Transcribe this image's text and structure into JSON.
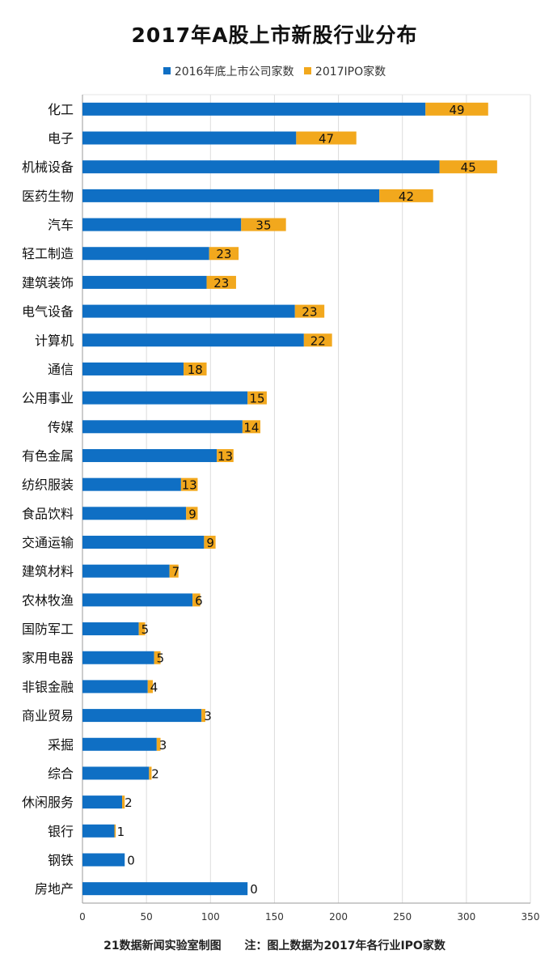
{
  "title": "2017年A股上市新股行业分布",
  "legend": [
    {
      "name": "2016年底上市公司家数",
      "color": "#0f6fc4"
    },
    {
      "name": "2017IPO家数",
      "color": "#f2a81d"
    }
  ],
  "footer": {
    "source": "21数据新闻实验室制图",
    "note": "注：图上数据为2017年各行业IPO家数"
  },
  "chart_data": {
    "type": "bar",
    "orientation": "horizontal",
    "stacked": true,
    "title": "2017年A股上市新股行业分布",
    "xlim": [
      0,
      350
    ],
    "xticks": [
      0,
      50,
      100,
      150,
      200,
      250,
      300,
      350
    ],
    "grid": "vertical",
    "legend_position": "top",
    "data_labels": "2017IPO家数",
    "categories": [
      "化工",
      "电子",
      "机械设备",
      "医药生物",
      "汽车",
      "轻工制造",
      "建筑装饰",
      "电气设备",
      "计算机",
      "通信",
      "公用事业",
      "传媒",
      "有色金属",
      "纺织服装",
      "食品饮料",
      "交通运输",
      "建筑材料",
      "农林牧渔",
      "国防军工",
      "家用电器",
      "非银金融",
      "商业贸易",
      "采掘",
      "综合",
      "休闲服务",
      "银行",
      "钢铁",
      "房地产"
    ],
    "series": [
      {
        "name": "2016年底上市公司家数",
        "color": "#0f6fc4",
        "values": [
          268,
          167,
          279,
          232,
          124,
          99,
          97,
          166,
          173,
          79,
          129,
          125,
          105,
          77,
          81,
          95,
          68,
          86,
          44,
          56,
          51,
          93,
          58,
          52,
          31,
          25,
          33,
          129
        ]
      },
      {
        "name": "2017IPO家数",
        "color": "#f2a81d",
        "values": [
          49,
          47,
          45,
          42,
          35,
          23,
          23,
          23,
          22,
          18,
          15,
          14,
          13,
          13,
          9,
          9,
          7,
          6,
          5,
          5,
          4,
          3,
          3,
          2,
          2,
          1,
          0,
          0
        ]
      }
    ]
  }
}
